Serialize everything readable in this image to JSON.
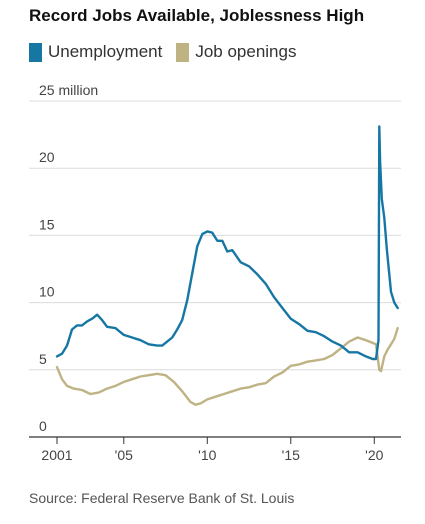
{
  "chart_data": {
    "type": "line",
    "title": "Record Jobs Available, Joblessness High",
    "xlabel": "",
    "ylabel": "",
    "y_unit_label": "25 million",
    "ylim": [
      0,
      25
    ],
    "xlim": [
      2001.0,
      2021.6
    ],
    "grid": "horizontal",
    "legend_position": "top-left",
    "y_ticks": [
      {
        "value": 0,
        "label": "0"
      },
      {
        "value": 5,
        "label": "5"
      },
      {
        "value": 10,
        "label": "10"
      },
      {
        "value": 15,
        "label": "15"
      },
      {
        "value": 20,
        "label": "20"
      },
      {
        "value": 25,
        "label": "25 million"
      }
    ],
    "x_ticks": [
      {
        "value": 2001,
        "label": "2001"
      },
      {
        "value": 2005,
        "label": "'05"
      },
      {
        "value": 2010,
        "label": "'10"
      },
      {
        "value": 2015,
        "label": "'15"
      },
      {
        "value": 2020,
        "label": "'20"
      }
    ],
    "series": [
      {
        "name": "Unemployment",
        "color": "#1677a4",
        "x": [
          2001.0,
          2001.3,
          2001.6,
          2001.9,
          2002.2,
          2002.5,
          2002.8,
          2003.1,
          2003.4,
          2003.7,
          2004.0,
          2004.5,
          2005.0,
          2005.5,
          2006.0,
          2006.5,
          2007.0,
          2007.3,
          2007.6,
          2007.9,
          2008.2,
          2008.5,
          2008.8,
          2009.1,
          2009.4,
          2009.7,
          2010.0,
          2010.3,
          2010.6,
          2010.9,
          2011.2,
          2011.5,
          2012.0,
          2012.5,
          2013.0,
          2013.5,
          2014.0,
          2014.5,
          2015.0,
          2015.5,
          2016.0,
          2016.5,
          2017.0,
          2017.5,
          2018.0,
          2018.5,
          2019.0,
          2019.5,
          2019.9,
          2020.1,
          2020.25,
          2020.3,
          2020.35,
          2020.45,
          2020.6,
          2020.75,
          2020.9,
          2021.0,
          2021.2,
          2021.4
        ],
        "values": [
          6.0,
          6.2,
          6.8,
          8.0,
          8.3,
          8.3,
          8.6,
          8.8,
          9.1,
          8.7,
          8.2,
          8.1,
          7.6,
          7.4,
          7.2,
          6.9,
          6.8,
          6.8,
          7.1,
          7.4,
          8.0,
          8.7,
          10.2,
          12.2,
          14.2,
          15.1,
          15.3,
          15.2,
          14.6,
          14.6,
          13.8,
          13.9,
          13.0,
          12.7,
          12.1,
          11.4,
          10.4,
          9.6,
          8.8,
          8.4,
          7.9,
          7.8,
          7.5,
          7.1,
          6.8,
          6.3,
          6.3,
          6.0,
          5.8,
          5.8,
          7.2,
          23.1,
          20.5,
          17.7,
          16.3,
          14.0,
          12.1,
          10.8,
          10.0,
          9.6
        ]
      },
      {
        "name": "Job openings",
        "color": "#bfb384",
        "x": [
          2001.0,
          2001.3,
          2001.6,
          2002.0,
          2002.5,
          2003.0,
          2003.5,
          2004.0,
          2004.5,
          2005.0,
          2005.5,
          2006.0,
          2006.5,
          2007.0,
          2007.5,
          2008.0,
          2008.5,
          2009.0,
          2009.3,
          2009.6,
          2010.0,
          2010.5,
          2011.0,
          2011.5,
          2012.0,
          2012.5,
          2013.0,
          2013.5,
          2014.0,
          2014.5,
          2015.0,
          2015.5,
          2016.0,
          2016.5,
          2017.0,
          2017.5,
          2018.0,
          2018.5,
          2019.0,
          2019.5,
          2019.9,
          2020.1,
          2020.3,
          2020.4,
          2020.6,
          2020.8,
          2021.0,
          2021.2,
          2021.4
        ],
        "values": [
          5.2,
          4.3,
          3.8,
          3.6,
          3.5,
          3.2,
          3.3,
          3.6,
          3.8,
          4.1,
          4.3,
          4.5,
          4.6,
          4.7,
          4.6,
          4.1,
          3.4,
          2.6,
          2.4,
          2.5,
          2.8,
          3.0,
          3.2,
          3.4,
          3.6,
          3.7,
          3.9,
          4.0,
          4.5,
          4.8,
          5.3,
          5.4,
          5.6,
          5.7,
          5.8,
          6.1,
          6.6,
          7.1,
          7.4,
          7.2,
          7.0,
          6.9,
          5.0,
          4.9,
          6.0,
          6.5,
          6.9,
          7.3,
          8.1
        ]
      }
    ],
    "source": "Source: Federal Reserve Bank of St. Louis"
  }
}
